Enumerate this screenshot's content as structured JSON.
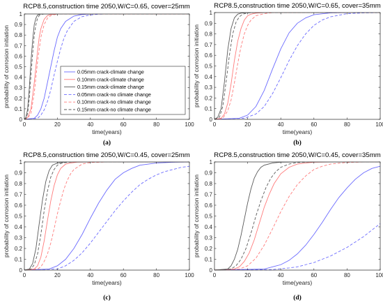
{
  "chart_data": [
    {
      "type": "line",
      "panel_label": "(a)",
      "title": "RCP8.5,construction time 2050,W/C=0.65, cover=25mm",
      "xlabel": "time(years)",
      "ylabel": "probability of corrosion initiation",
      "xlim": [
        0,
        100
      ],
      "ylim": [
        0,
        1
      ],
      "xticks": [
        "0",
        "20",
        "40",
        "60",
        "80",
        "100"
      ],
      "yticks": [
        "0",
        "0.1",
        "0.2",
        "0.3",
        "0.4",
        "0.5",
        "0.6",
        "0.7",
        "0.8",
        "0.9",
        "1"
      ],
      "grid": false,
      "legend": "bottom-right",
      "series": [
        {
          "name": "0.05mm crack-climate change",
          "color": "#6a6aff",
          "dash": "solid",
          "x": [
            0,
            6,
            8,
            10,
            12,
            14,
            16,
            18,
            20,
            22,
            25,
            30,
            35,
            40,
            50,
            100
          ],
          "y": [
            0,
            0.01,
            0.04,
            0.1,
            0.2,
            0.35,
            0.5,
            0.65,
            0.78,
            0.86,
            0.93,
            0.98,
            0.995,
            1,
            1,
            1
          ]
        },
        {
          "name": "0.10mm crack-climate change",
          "color": "#ff7b7b",
          "dash": "solid",
          "x": [
            0,
            2,
            4,
            6,
            7,
            8,
            9,
            10,
            12,
            14,
            16,
            20,
            100
          ],
          "y": [
            0,
            0.02,
            0.1,
            0.35,
            0.5,
            0.65,
            0.78,
            0.86,
            0.95,
            0.985,
            0.995,
            1,
            1
          ]
        },
        {
          "name": "0.15mm crack-climate change",
          "color": "#5a5a5a",
          "dash": "solid",
          "x": [
            0,
            1,
            2,
            3,
            4,
            5,
            6,
            7,
            8,
            10,
            12,
            100
          ],
          "y": [
            0,
            0.02,
            0.1,
            0.3,
            0.55,
            0.75,
            0.9,
            0.96,
            0.99,
            1,
            1,
            1
          ]
        },
        {
          "name": "0.05mm crack-no climate change",
          "color": "#6a6aff",
          "dash": "dashed",
          "x": [
            0,
            8,
            10,
            12,
            14,
            16,
            18,
            20,
            22,
            24,
            26,
            30,
            35,
            40,
            45,
            50,
            100
          ],
          "y": [
            0,
            0.01,
            0.04,
            0.09,
            0.17,
            0.28,
            0.42,
            0.55,
            0.67,
            0.77,
            0.84,
            0.93,
            0.975,
            0.99,
            0.998,
            1,
            1
          ]
        },
        {
          "name": "0.10mm crack-no climate change",
          "color": "#ff7b7b",
          "dash": "dashed",
          "x": [
            0,
            2,
            4,
            6,
            8,
            10,
            12,
            14,
            16,
            20,
            100
          ],
          "y": [
            0,
            0.01,
            0.06,
            0.25,
            0.55,
            0.78,
            0.9,
            0.96,
            0.985,
            1,
            1
          ]
        },
        {
          "name": "0.15mm crack-no climate change",
          "color": "#5a5a5a",
          "dash": "dashed",
          "x": [
            0,
            1,
            2,
            3,
            4,
            5,
            6,
            7,
            8,
            9,
            10,
            12,
            100
          ],
          "y": [
            0,
            0.01,
            0.06,
            0.2,
            0.42,
            0.62,
            0.8,
            0.9,
            0.96,
            0.985,
            0.995,
            1,
            1
          ]
        }
      ]
    },
    {
      "type": "line",
      "panel_label": "(b)",
      "title": "RCP8.5,construction time 2050,W/C=0.65, cover=35mm",
      "xlabel": "time(years)",
      "ylabel": "probability of corrosion initiation",
      "xlim": [
        0,
        100
      ],
      "ylim": [
        0,
        1
      ],
      "xticks": [
        "0",
        "20",
        "40",
        "60",
        "80",
        "100"
      ],
      "yticks": [
        "0",
        "0.1",
        "0.2",
        "0.3",
        "0.4",
        "0.5",
        "0.6",
        "0.7",
        "0.8",
        "0.9",
        "1"
      ],
      "grid": false,
      "series": [
        {
          "name": "0.05mm crack-climate change",
          "color": "#6a6aff",
          "dash": "solid",
          "x": [
            0,
            15,
            20,
            25,
            30,
            35,
            40,
            45,
            50,
            55,
            60,
            70,
            80,
            100
          ],
          "y": [
            0,
            0.01,
            0.04,
            0.12,
            0.27,
            0.47,
            0.66,
            0.81,
            0.9,
            0.95,
            0.98,
            0.997,
            1,
            1
          ]
        },
        {
          "name": "0.10mm crack-climate change",
          "color": "#ff7b7b",
          "dash": "solid",
          "x": [
            0,
            4,
            6,
            8,
            10,
            12,
            14,
            16,
            18,
            20,
            22,
            25,
            30,
            100
          ],
          "y": [
            0,
            0.01,
            0.05,
            0.15,
            0.33,
            0.55,
            0.73,
            0.85,
            0.93,
            0.97,
            0.985,
            0.995,
            1,
            1
          ]
        },
        {
          "name": "0.15mm crack-climate change",
          "color": "#5a5a5a",
          "dash": "solid",
          "x": [
            0,
            2,
            4,
            6,
            8,
            10,
            12,
            14,
            16,
            20,
            100
          ],
          "y": [
            0,
            0.02,
            0.1,
            0.35,
            0.65,
            0.85,
            0.95,
            0.985,
            0.995,
            1,
            1
          ]
        },
        {
          "name": "0.05mm crack-no climate change",
          "color": "#6a6aff",
          "dash": "dashed",
          "x": [
            0,
            18,
            25,
            30,
            35,
            40,
            45,
            50,
            55,
            60,
            65,
            70,
            80,
            90,
            100
          ],
          "y": [
            0,
            0.01,
            0.05,
            0.12,
            0.24,
            0.39,
            0.55,
            0.69,
            0.8,
            0.88,
            0.93,
            0.96,
            0.99,
            0.997,
            1
          ]
        },
        {
          "name": "0.10mm crack-no climate change",
          "color": "#ff7b7b",
          "dash": "dashed",
          "x": [
            0,
            5,
            8,
            10,
            12,
            14,
            16,
            18,
            20,
            22,
            25,
            30,
            35,
            100
          ],
          "y": [
            0,
            0.01,
            0.08,
            0.18,
            0.34,
            0.52,
            0.68,
            0.8,
            0.88,
            0.93,
            0.97,
            0.99,
            1,
            1
          ]
        },
        {
          "name": "0.15mm crack-no climate change",
          "color": "#5a5a5a",
          "dash": "dashed",
          "x": [
            0,
            3,
            5,
            7,
            9,
            11,
            13,
            15,
            17,
            20,
            25,
            100
          ],
          "y": [
            0,
            0.02,
            0.12,
            0.35,
            0.6,
            0.8,
            0.91,
            0.96,
            0.985,
            0.997,
            1,
            1
          ]
        }
      ]
    },
    {
      "type": "line",
      "panel_label": "(c)",
      "title": "RCP8.5,construction time 2050,W/C=0.45, cover=25mm",
      "xlabel": "time(years)",
      "ylabel": "probability of corrosion initiation",
      "xlim": [
        0,
        100
      ],
      "ylim": [
        0,
        1
      ],
      "xticks": [
        "0",
        "20",
        "40",
        "60",
        "80",
        "100"
      ],
      "yticks": [
        "0",
        "0.1",
        "0.2",
        "0.3",
        "0.4",
        "0.5",
        "0.6",
        "0.7",
        "0.8",
        "0.9",
        "1"
      ],
      "grid": false,
      "series": [
        {
          "name": "0.05mm crack-climate change",
          "color": "#6a6aff",
          "dash": "solid",
          "x": [
            0,
            15,
            20,
            25,
            30,
            35,
            40,
            45,
            50,
            55,
            60,
            65,
            70,
            80,
            90,
            100
          ],
          "y": [
            0,
            0.01,
            0.04,
            0.1,
            0.2,
            0.33,
            0.48,
            0.62,
            0.74,
            0.84,
            0.9,
            0.94,
            0.97,
            0.99,
            0.997,
            1
          ]
        },
        {
          "name": "0.10mm crack-climate change",
          "color": "#ff7b7b",
          "dash": "solid",
          "x": [
            0,
            6,
            8,
            10,
            12,
            14,
            16,
            18,
            20,
            22,
            25,
            28,
            32,
            40,
            100
          ],
          "y": [
            0,
            0.01,
            0.04,
            0.12,
            0.27,
            0.46,
            0.64,
            0.78,
            0.88,
            0.94,
            0.98,
            0.99,
            0.998,
            1,
            1
          ]
        },
        {
          "name": "0.15mm crack-climate change",
          "color": "#5a5a5a",
          "dash": "solid",
          "x": [
            0,
            3,
            5,
            7,
            9,
            11,
            13,
            15,
            17,
            20,
            25,
            100
          ],
          "y": [
            0,
            0.01,
            0.06,
            0.2,
            0.43,
            0.65,
            0.82,
            0.92,
            0.97,
            0.99,
            1,
            1
          ]
        },
        {
          "name": "0.05mm crack-no climate change",
          "color": "#6a6aff",
          "dash": "dashed",
          "x": [
            0,
            20,
            25,
            30,
            35,
            40,
            45,
            50,
            55,
            60,
            65,
            70,
            75,
            80,
            85,
            90,
            95,
            100
          ],
          "y": [
            0,
            0.01,
            0.04,
            0.09,
            0.16,
            0.25,
            0.35,
            0.45,
            0.55,
            0.64,
            0.72,
            0.79,
            0.84,
            0.88,
            0.91,
            0.93,
            0.95,
            0.96
          ]
        },
        {
          "name": "0.10mm crack-no climate change",
          "color": "#ff7b7b",
          "dash": "dashed",
          "x": [
            0,
            8,
            10,
            12,
            14,
            16,
            18,
            20,
            22,
            24,
            26,
            28,
            30,
            35,
            40,
            50,
            100
          ],
          "y": [
            0,
            0.01,
            0.03,
            0.08,
            0.15,
            0.25,
            0.38,
            0.52,
            0.64,
            0.75,
            0.83,
            0.89,
            0.93,
            0.98,
            0.995,
            1,
            1
          ]
        },
        {
          "name": "0.15mm crack-no climate change",
          "color": "#5a5a5a",
          "dash": "dashed",
          "x": [
            0,
            4,
            6,
            8,
            10,
            12,
            14,
            16,
            18,
            20,
            22,
            25,
            30,
            100
          ],
          "y": [
            0,
            0.01,
            0.05,
            0.15,
            0.33,
            0.55,
            0.73,
            0.86,
            0.93,
            0.97,
            0.985,
            0.995,
            1,
            1
          ]
        }
      ]
    },
    {
      "type": "line",
      "panel_label": "(d)",
      "title": "RCP8.5,construction time 2050,W/C=0.45, cover=35mm",
      "xlabel": "time(years)",
      "ylabel": "probability of corrosion initiation",
      "xlim": [
        0,
        100
      ],
      "ylim": [
        0,
        1
      ],
      "xticks": [
        "0",
        "20",
        "40",
        "60",
        "80",
        "100"
      ],
      "yticks": [
        "0",
        "0.1",
        "0.2",
        "0.3",
        "0.4",
        "0.5",
        "0.6",
        "0.7",
        "0.8",
        "0.9",
        "1"
      ],
      "grid": false,
      "series": [
        {
          "name": "0.05mm crack-climate change",
          "color": "#6a6aff",
          "dash": "solid",
          "x": [
            0,
            30,
            40,
            45,
            50,
            55,
            60,
            65,
            70,
            75,
            80,
            85,
            90,
            95,
            100
          ],
          "y": [
            0,
            0.01,
            0.05,
            0.09,
            0.15,
            0.23,
            0.33,
            0.44,
            0.56,
            0.67,
            0.76,
            0.84,
            0.9,
            0.94,
            0.96
          ]
        },
        {
          "name": "0.10mm crack-climate change",
          "color": "#ff7b7b",
          "dash": "solid",
          "x": [
            0,
            12,
            15,
            18,
            21,
            24,
            27,
            30,
            33,
            36,
            40,
            45,
            50,
            55,
            60,
            70,
            100
          ],
          "y": [
            0,
            0.01,
            0.03,
            0.08,
            0.16,
            0.28,
            0.43,
            0.58,
            0.7,
            0.8,
            0.89,
            0.95,
            0.98,
            0.99,
            0.997,
            1,
            1
          ]
        },
        {
          "name": "0.15mm crack-climate change",
          "color": "#5a5a5a",
          "dash": "solid",
          "x": [
            0,
            8,
            10,
            12,
            14,
            16,
            18,
            20,
            22,
            24,
            26,
            28,
            30,
            35,
            40,
            50,
            100
          ],
          "y": [
            0,
            0.01,
            0.04,
            0.1,
            0.19,
            0.32,
            0.47,
            0.62,
            0.75,
            0.85,
            0.91,
            0.95,
            0.97,
            0.99,
            0.998,
            1,
            1
          ]
        },
        {
          "name": "0.05mm crack-no climate change",
          "color": "#6a6aff",
          "dash": "dashed",
          "x": [
            0,
            35,
            45,
            50,
            55,
            60,
            65,
            70,
            75,
            80,
            85,
            90,
            95,
            100
          ],
          "y": [
            0,
            0.005,
            0.02,
            0.03,
            0.05,
            0.07,
            0.1,
            0.13,
            0.17,
            0.21,
            0.26,
            0.31,
            0.37,
            0.43
          ]
        },
        {
          "name": "0.10mm crack-no climate change",
          "color": "#ff7b7b",
          "dash": "dashed",
          "x": [
            0,
            15,
            20,
            25,
            30,
            35,
            40,
            45,
            50,
            55,
            60,
            65,
            70,
            80,
            90,
            100
          ],
          "y": [
            0,
            0.01,
            0.04,
            0.11,
            0.23,
            0.38,
            0.54,
            0.68,
            0.79,
            0.87,
            0.93,
            0.96,
            0.98,
            0.995,
            1,
            1
          ]
        },
        {
          "name": "0.15mm crack-no climate change",
          "color": "#5a5a5a",
          "dash": "dashed",
          "x": [
            0,
            10,
            13,
            16,
            19,
            22,
            25,
            28,
            31,
            34,
            37,
            40,
            45,
            50,
            60,
            100
          ],
          "y": [
            0,
            0.01,
            0.04,
            0.1,
            0.2,
            0.34,
            0.5,
            0.64,
            0.76,
            0.85,
            0.91,
            0.95,
            0.98,
            0.995,
            1,
            1
          ]
        }
      ]
    }
  ]
}
